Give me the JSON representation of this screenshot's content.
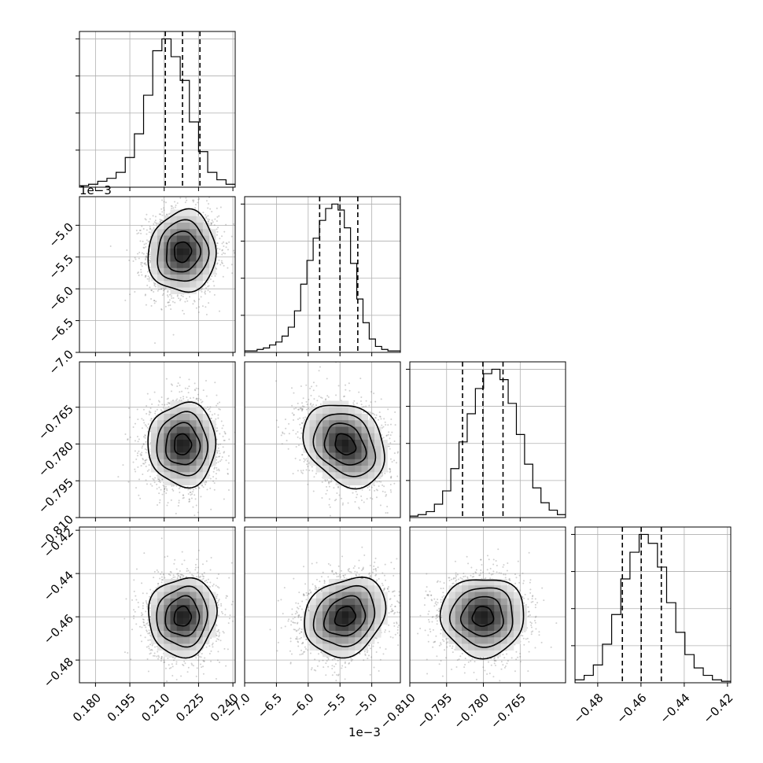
{
  "chart_data": {
    "type": "corner",
    "params": [
      {
        "range": [
          0.173,
          0.241
        ],
        "ticks": [
          0.18,
          0.195,
          0.21,
          0.225,
          0.24
        ],
        "tick_labels": [
          "0.180",
          "0.195",
          "0.210",
          "0.225",
          "0.240"
        ],
        "offset_label": "",
        "quantiles": [
          0.2105,
          0.218,
          0.2256
        ],
        "histogram": [
          1,
          2,
          4,
          6,
          10,
          20,
          36,
          62,
          92,
          100,
          88,
          72,
          44,
          24,
          10,
          5,
          2
        ]
      },
      {
        "range": [
          -7.0,
          -4.55
        ],
        "ticks": [
          -7.0,
          -6.5,
          -6.0,
          -5.5,
          -5.0
        ],
        "tick_labels": [
          "−7.0",
          "−6.5",
          "−6.0",
          "−5.5",
          "−5.0"
        ],
        "offset_label": "1e−3",
        "quantiles": [
          -5.82,
          -5.5,
          -5.22
        ],
        "histogram": [
          1,
          1,
          2,
          3,
          5,
          7,
          11,
          17,
          28,
          46,
          62,
          77,
          89,
          97,
          100,
          96,
          84,
          60,
          36,
          20,
          9,
          4,
          2,
          1,
          1
        ]
      },
      {
        "range": [
          -0.81,
          -0.7465
        ],
        "ticks": [
          -0.81,
          -0.795,
          -0.78,
          -0.765
        ],
        "tick_labels": [
          "−0.810",
          "−0.795",
          "−0.780",
          "−0.765"
        ],
        "offset_label": "",
        "quantiles": [
          -0.7885,
          -0.7802,
          -0.772
        ],
        "histogram": [
          1,
          2,
          4,
          9,
          18,
          33,
          51,
          70,
          87,
          97,
          100,
          93,
          77,
          56,
          36,
          20,
          10,
          5,
          2
        ]
      },
      {
        "range": [
          -0.4905,
          -0.4185
        ],
        "ticks": [
          -0.48,
          -0.46,
          -0.44,
          -0.42
        ],
        "tick_labels": [
          "−0.48",
          "−0.46",
          "−0.44",
          "−0.42"
        ],
        "offset_label": "",
        "quantiles": [
          -0.4686,
          -0.4599,
          -0.4506
        ],
        "histogram": [
          2,
          5,
          12,
          26,
          46,
          70,
          88,
          100,
          94,
          78,
          54,
          34,
          19,
          10,
          5,
          2,
          1
        ]
      }
    ],
    "pairs": [
      {
        "row": 1,
        "col": 0,
        "center": [
          0.218,
          -5.42
        ],
        "sigma": [
          0.0074,
          0.32
        ],
        "rho": 0.05
      },
      {
        "row": 2,
        "col": 0,
        "center": [
          0.218,
          -0.7802
        ],
        "sigma": [
          0.0074,
          0.0085
        ],
        "rho": 0.0
      },
      {
        "row": 2,
        "col": 1,
        "center": [
          -5.42,
          -0.7802
        ],
        "sigma": [
          0.32,
          0.0085
        ],
        "rho": -0.25
      },
      {
        "row": 3,
        "col": 0,
        "center": [
          0.218,
          -0.4599
        ],
        "sigma": [
          0.0074,
          0.0091
        ],
        "rho": 0.05
      },
      {
        "row": 3,
        "col": 1,
        "center": [
          -5.42,
          -0.4599
        ],
        "sigma": [
          0.32,
          0.0091
        ],
        "rho": 0.2
      },
      {
        "row": 3,
        "col": 2,
        "center": [
          -0.7802,
          -0.4599
        ],
        "sigma": [
          0.0085,
          0.0091
        ],
        "rho": 0.0
      }
    ],
    "contour_levels_sigma": [
      0.5,
      1.0,
      1.5,
      2.0
    ],
    "grid": true,
    "colors": {
      "ink": "#000000",
      "grid": "#b0b0b0",
      "scatter": "#777777"
    }
  }
}
